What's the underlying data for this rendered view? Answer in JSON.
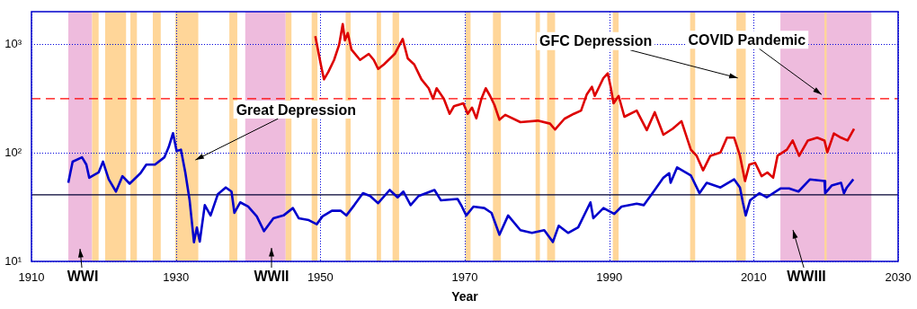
{
  "chart_data": {
    "type": "line",
    "xlabel": "Year",
    "log": "y",
    "grid": true,
    "legend": false,
    "marker": "none",
    "line_style": "solid",
    "xlim": [
      1910,
      2030
    ],
    "xticks": [
      1910,
      1930,
      1950,
      1970,
      1990,
      2010,
      2030
    ],
    "ylim": [
      10,
      2000
    ],
    "yticks": [
      {
        "value": 10,
        "label": "10¹"
      },
      {
        "value": 100,
        "label": "10²"
      },
      {
        "value": 1000,
        "label": "10³"
      }
    ],
    "series": [
      {
        "color": "#0000cc",
        "x": [
          1915.1,
          1915.7,
          1917,
          1917.6,
          1918,
          1919.3,
          1919.9,
          1920.7,
          1921.7,
          1922.6,
          1923.6,
          1925.1,
          1925.9,
          1927.1,
          1928.4,
          1929,
          1929.6,
          1930.1,
          1930.7,
          1931.3,
          1931.9,
          1932.5,
          1932.9,
          1933.3,
          1934,
          1934.8,
          1935.8,
          1936.9,
          1937.7,
          1938.1,
          1938.9,
          1940,
          1941.2,
          1942.2,
          1943.5,
          1944.9,
          1946.2,
          1947,
          1948.4,
          1949.5,
          1950.3,
          1951.6,
          1952.8,
          1953.6,
          1954.7,
          1955.9,
          1956.9,
          1958,
          1959.6,
          1960.7,
          1961.5,
          1962.5,
          1963.6,
          1965.8,
          1966.7,
          1969,
          1969.6,
          1970.2,
          1971.2,
          1972.7,
          1973.7,
          1974.8,
          1976,
          1977.7,
          1979.3,
          1981,
          1982.2,
          1983,
          1984.3,
          1985.7,
          1987.4,
          1987.8,
          1989.2,
          1990.7,
          1991.7,
          1993.8,
          1994.8,
          1996.3,
          1997.5,
          1998.3,
          1998.5,
          1999.4,
          2001.3,
          2002.5,
          2003.5,
          2005.4,
          2007.3,
          2008.1,
          2008.5,
          2008.9,
          2009.5,
          2010.8,
          2011.8,
          2013.7,
          2014.9,
          2016.2,
          2017.8,
          2019.8,
          2019.9,
          2020.8,
          2022.1,
          2022.5,
          2022.9,
          2023.8
        ],
        "values": [
          53,
          83,
          91,
          78,
          59,
          66,
          83,
          57,
          44,
          61,
          52,
          65,
          78,
          78,
          91,
          113,
          152,
          104,
          107,
          66,
          36.5,
          15,
          20.5,
          15.2,
          33,
          26.5,
          41.5,
          48,
          44,
          28,
          35,
          32,
          26,
          19,
          25,
          26.5,
          31,
          25,
          24,
          22,
          26,
          29.3,
          29.3,
          26.5,
          33,
          42.5,
          40,
          34.4,
          45.5,
          38.9,
          44,
          33,
          40,
          45.5,
          36.5,
          37.6,
          32,
          26.5,
          32,
          31,
          28,
          17.6,
          26.5,
          19.4,
          18.3,
          19.4,
          15.1,
          21.3,
          18.3,
          20.6,
          35,
          25,
          31,
          27.4,
          32,
          34,
          33,
          45.5,
          59,
          65,
          53,
          73.5,
          62,
          42.5,
          53,
          48,
          57,
          48,
          35,
          26.5,
          36.5,
          42.5,
          38.9,
          47,
          47,
          44,
          57,
          55,
          42.5,
          50,
          53,
          42.5,
          48,
          57
        ]
      },
      {
        "color": "#dd0000",
        "x": [
          1949.3,
          1950.1,
          1950.5,
          1951.1,
          1951.9,
          1952.6,
          1953.1,
          1953.4,
          1953.8,
          1954.3,
          1955.5,
          1956.7,
          1957.4,
          1958,
          1958.8,
          1960.3,
          1961.4,
          1962.1,
          1963,
          1964,
          1965,
          1965.6,
          1966.1,
          1967.1,
          1967.9,
          1968.5,
          1969.8,
          1970.4,
          1971,
          1971.6,
          1972.3,
          1972.9,
          1973.5,
          1974.1,
          1974.8,
          1975.6,
          1977.7,
          1980.1,
          1981.8,
          1982.5,
          1983.8,
          1985.1,
          1986.1,
          1986.9,
          1987.6,
          1988,
          1989.2,
          1989.8,
          1990.2,
          1990.6,
          1991.3,
          1992.1,
          1993.8,
          1995.2,
          1996.3,
          1997.5,
          1998.8,
          2000,
          2001.3,
          2002.1,
          2003,
          2004,
          2005.4,
          2006.3,
          2007.3,
          2008.1,
          2008.8,
          2009.4,
          2010.2,
          2011.1,
          2011.9,
          2012.7,
          2013.3,
          2014.6,
          2015.4,
          2016.3,
          2017.5,
          2018.8,
          2019.8,
          2020.2,
          2021.1,
          2022.1,
          2023,
          2023.9
        ],
        "values": [
          1190,
          634,
          476,
          557,
          718,
          990,
          1537,
          1086,
          1270,
          897,
          718,
          816,
          718,
          594,
          653,
          816,
          1120,
          742,
          653,
          476,
          394,
          315,
          394,
          315,
          229,
          269,
          286,
          229,
          261,
          208,
          315,
          394,
          335,
          277,
          202,
          224,
          192,
          198,
          186,
          164,
          206,
          229,
          245,
          347,
          406,
          335,
          490,
          540,
          406,
          286,
          335,
          215,
          245,
          162,
          237,
          147,
          167,
          196,
          107,
          94,
          69,
          94,
          101,
          138,
          138,
          94,
          55,
          78,
          81,
          61,
          66,
          59,
          94,
          107,
          130,
          94,
          130,
          138,
          130,
          101,
          151,
          138,
          130,
          167
        ]
      }
    ],
    "ref_lines": [
      {
        "axis": "y",
        "value": 316,
        "color": "#ff0000",
        "line_style": "dashed"
      },
      {
        "axis": "y",
        "value": 41,
        "color": "#000033",
        "line_style": "solid"
      }
    ],
    "bands": [
      {
        "axis": "x",
        "from": 1915.1,
        "to": 1918.4,
        "color": "#eebbdd"
      },
      {
        "axis": "x",
        "from": 1918.4,
        "to": 1919.3,
        "color": "#ffd699"
      },
      {
        "axis": "x",
        "from": 1920.2,
        "to": 1923.1,
        "color": "#ffd699"
      },
      {
        "axis": "x",
        "from": 1923.7,
        "to": 1924.6,
        "color": "#ffd699"
      },
      {
        "axis": "x",
        "from": 1926.8,
        "to": 1927.9,
        "color": "#ffd699"
      },
      {
        "axis": "x",
        "from": 1929.9,
        "to": 1933.1,
        "color": "#ffd699"
      },
      {
        "axis": "x",
        "from": 1937.4,
        "to": 1938.5,
        "color": "#ffd699"
      },
      {
        "axis": "x",
        "from": 1939.6,
        "to": 1945.2,
        "color": "#eebbdd"
      },
      {
        "axis": "x",
        "from": 1945.2,
        "to": 1946,
        "color": "#ffd699"
      },
      {
        "axis": "x",
        "from": 1948.8,
        "to": 1949.6,
        "color": "#ffd699"
      },
      {
        "axis": "x",
        "from": 1953.5,
        "to": 1954.2,
        "color": "#ffd699"
      },
      {
        "axis": "x",
        "from": 1957.8,
        "to": 1958.4,
        "color": "#ffd699"
      },
      {
        "axis": "x",
        "from": 1960,
        "to": 1960.9,
        "color": "#ffd699"
      },
      {
        "axis": "x",
        "from": 1970.1,
        "to": 1970.8,
        "color": "#ffd699"
      },
      {
        "axis": "x",
        "from": 1973.9,
        "to": 1975,
        "color": "#ffd699"
      },
      {
        "axis": "x",
        "from": 1979.8,
        "to": 1980.4,
        "color": "#ffd699"
      },
      {
        "axis": "x",
        "from": 1981.4,
        "to": 1982.5,
        "color": "#ffd699"
      },
      {
        "axis": "x",
        "from": 1990.5,
        "to": 1991.3,
        "color": "#ffd699"
      },
      {
        "axis": "x",
        "from": 2001.2,
        "to": 2001.9,
        "color": "#ffd699"
      },
      {
        "axis": "x",
        "from": 2007.6,
        "to": 2008.9,
        "color": "#ffd699"
      },
      {
        "axis": "x",
        "from": 2013.7,
        "to": 2026.3,
        "color": "#eebbdd"
      },
      {
        "axis": "x",
        "from": 2019.8,
        "to": 2020.1,
        "color": "#ffd699"
      }
    ],
    "annotations": [
      {
        "text": "Great Depression",
        "x": 1932.7,
        "y": 86
      },
      {
        "text": "GFC Depression",
        "x": 2007.8,
        "y": 490
      },
      {
        "text": "COVID Pandemic",
        "x": 2019.4,
        "y": 345
      },
      "WWI",
      "WWII",
      "WWIII"
    ]
  }
}
